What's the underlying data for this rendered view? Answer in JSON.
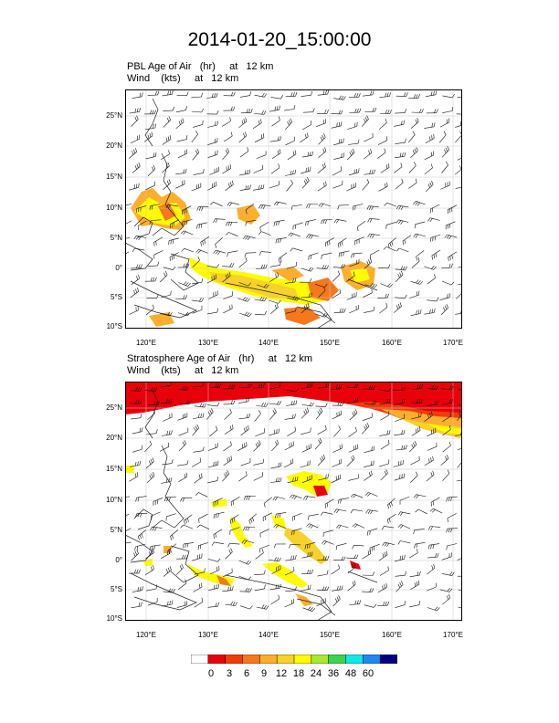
{
  "title": "2014-01-20_15:00:00",
  "panels": [
    {
      "id": "pbl",
      "field_label": "PBL Age of Air   (hr)     at   12 km",
      "wind_label": "Wind    (kts)     at   12 km"
    },
    {
      "id": "strat",
      "field_label": "Stratosphere Age of Air   (hr)     at   12 km",
      "wind_label": "Wind    (kts)     at   12 km"
    }
  ],
  "axes": {
    "lat_ticks": [
      "25°N",
      "20°N",
      "15°N",
      "10°N",
      "5°N",
      "0°",
      "5°S",
      "10°S"
    ],
    "lon_ticks": [
      "120°E",
      "130°E",
      "140°E",
      "150°E",
      "160°E",
      "170°E"
    ]
  },
  "colorbar": {
    "labels": [
      "0",
      "3",
      "6",
      "9",
      "12",
      "18",
      "24",
      "36",
      "48",
      "60"
    ],
    "colors": [
      "#ffffff",
      "#e8000b",
      "#f03c0a",
      "#f6781c",
      "#fcae2c",
      "#f6d22a",
      "#fffb00",
      "#a8e830",
      "#3cd252",
      "#10e8e8",
      "#1e88f0",
      "#000080"
    ]
  }
}
